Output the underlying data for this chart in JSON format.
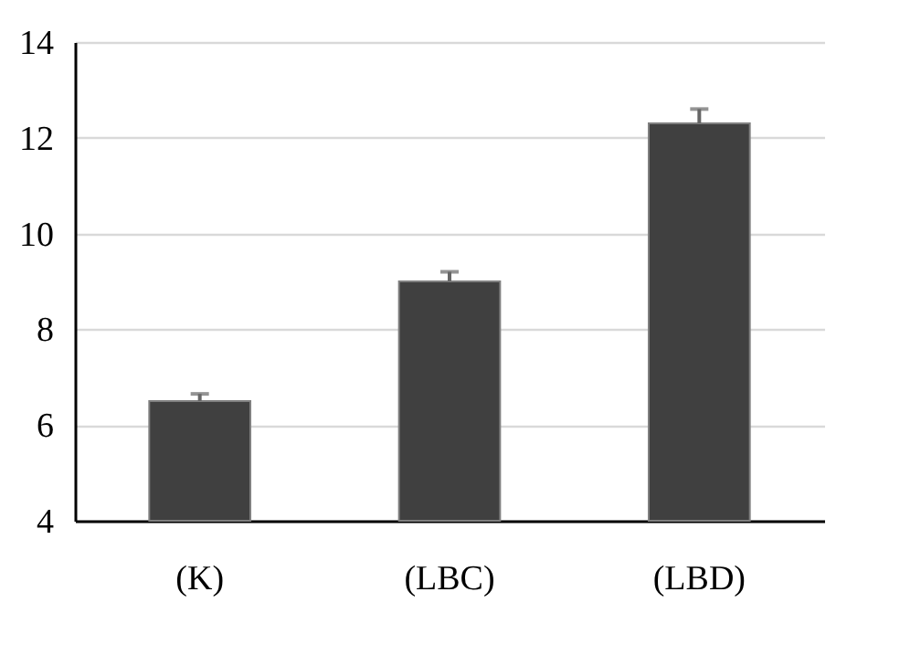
{
  "chart_data": {
    "type": "bar",
    "categories": [
      "(K)",
      "(LBC)",
      "(LBD)"
    ],
    "values": [
      6.5,
      9.0,
      12.3
    ],
    "errors": [
      [
        6.5,
        6.65
      ],
      [
        9.0,
        9.2
      ],
      [
        12.3,
        12.6
      ]
    ],
    "color": "#404040",
    "ylim": [
      4,
      14
    ],
    "yticks": [
      4,
      6,
      8,
      10,
      12,
      14
    ],
    "grid": "y"
  }
}
